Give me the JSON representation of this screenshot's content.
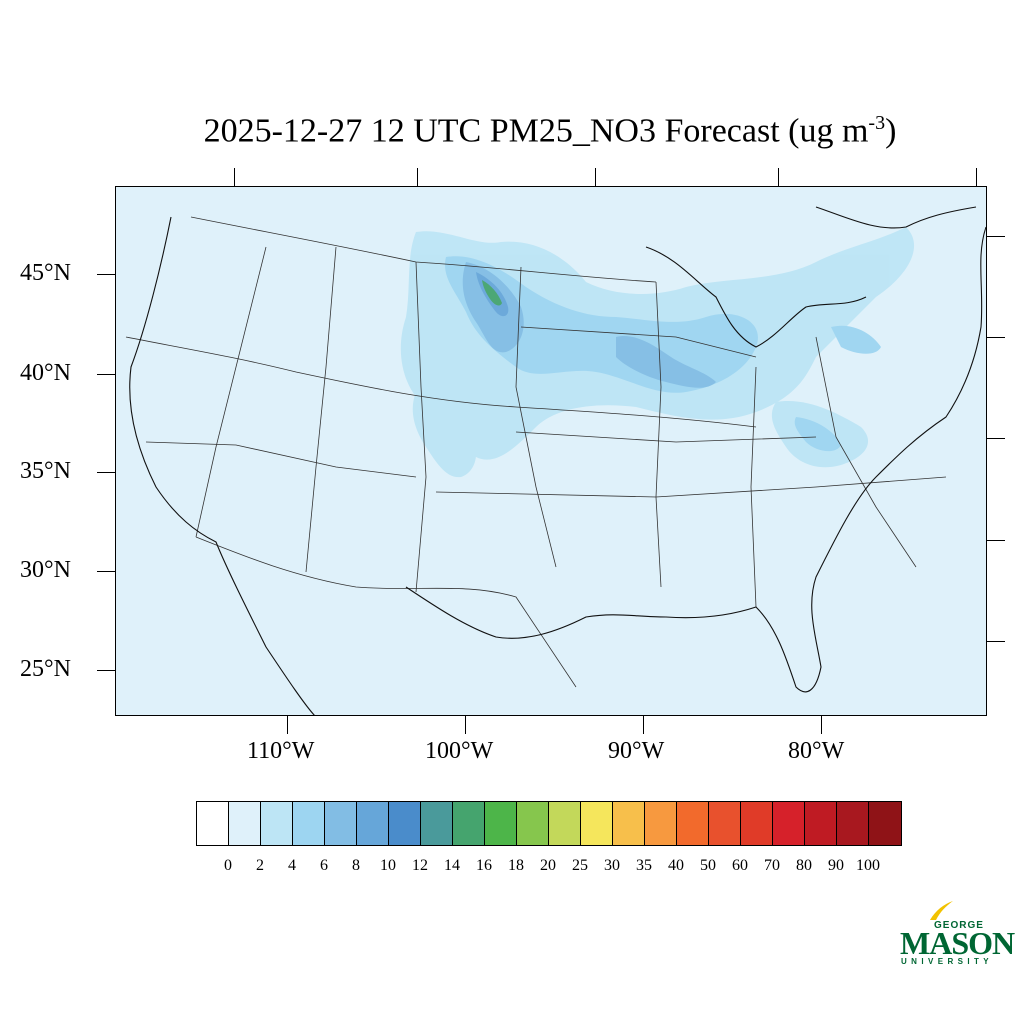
{
  "title": {
    "main": "2025-12-27 12 UTC PM25_NO3 Forecast (ug m",
    "exponent": "-3",
    "close": ")"
  },
  "map": {
    "background_color": "#dff1fa",
    "latitude_labels": [
      "45°N",
      "40°N",
      "35°N",
      "30°N",
      "25°N"
    ],
    "longitude_labels": [
      "110°W",
      "100°W",
      "90°W",
      "80°W"
    ]
  },
  "colorbar": {
    "colors": [
      "#ffffff",
      "#dff1fa",
      "#bde5f5",
      "#9dd5f1",
      "#82bde4",
      "#66a6d9",
      "#4a8ccb",
      "#4a9a9b",
      "#45a46e",
      "#4db549",
      "#86c64d",
      "#c3d85a",
      "#f5e65c",
      "#f7bf4b",
      "#f7993f",
      "#f26a2c",
      "#e8512d",
      "#e03b28",
      "#d6212a",
      "#bf1b23",
      "#a8181f",
      "#8f1317"
    ],
    "labels": [
      "0",
      "2",
      "4",
      "6",
      "8",
      "10",
      "12",
      "14",
      "16",
      "18",
      "20",
      "25",
      "30",
      "35",
      "40",
      "50",
      "60",
      "70",
      "80",
      "90",
      "100"
    ]
  },
  "logo": {
    "line1": "GEORGE",
    "line2": "MASON",
    "line3": "UNIVERSITY",
    "color": "#006633",
    "accent": "#f2c200"
  }
}
